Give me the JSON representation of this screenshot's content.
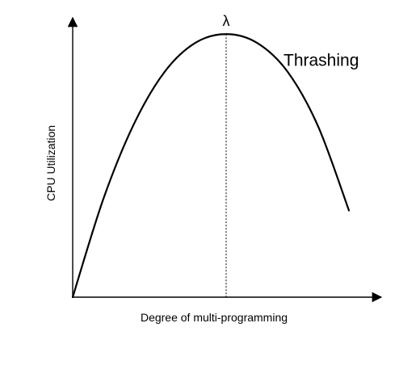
{
  "chart_data": {
    "type": "line",
    "title": "",
    "xlabel": "Degree of multi-programming",
    "ylabel": "CPU Utilization",
    "xlim": [
      0,
      100
    ],
    "ylim": [
      0,
      100
    ],
    "grid": false,
    "legend": "none",
    "series": [
      {
        "values": [
          [
            0,
            0
          ],
          [
            10,
            34
          ],
          [
            20,
            60
          ],
          [
            30,
            78
          ],
          [
            40,
            88
          ],
          [
            50,
            91
          ],
          [
            60,
            88
          ],
          [
            70,
            78
          ],
          [
            80,
            59
          ],
          [
            90,
            30
          ]
        ]
      }
    ],
    "peak": {
      "label": "λ",
      "x": 50,
      "y": 91
    },
    "annotations": [
      {
        "text": "Thrashing",
        "x": 70,
        "y": 80
      }
    ]
  }
}
